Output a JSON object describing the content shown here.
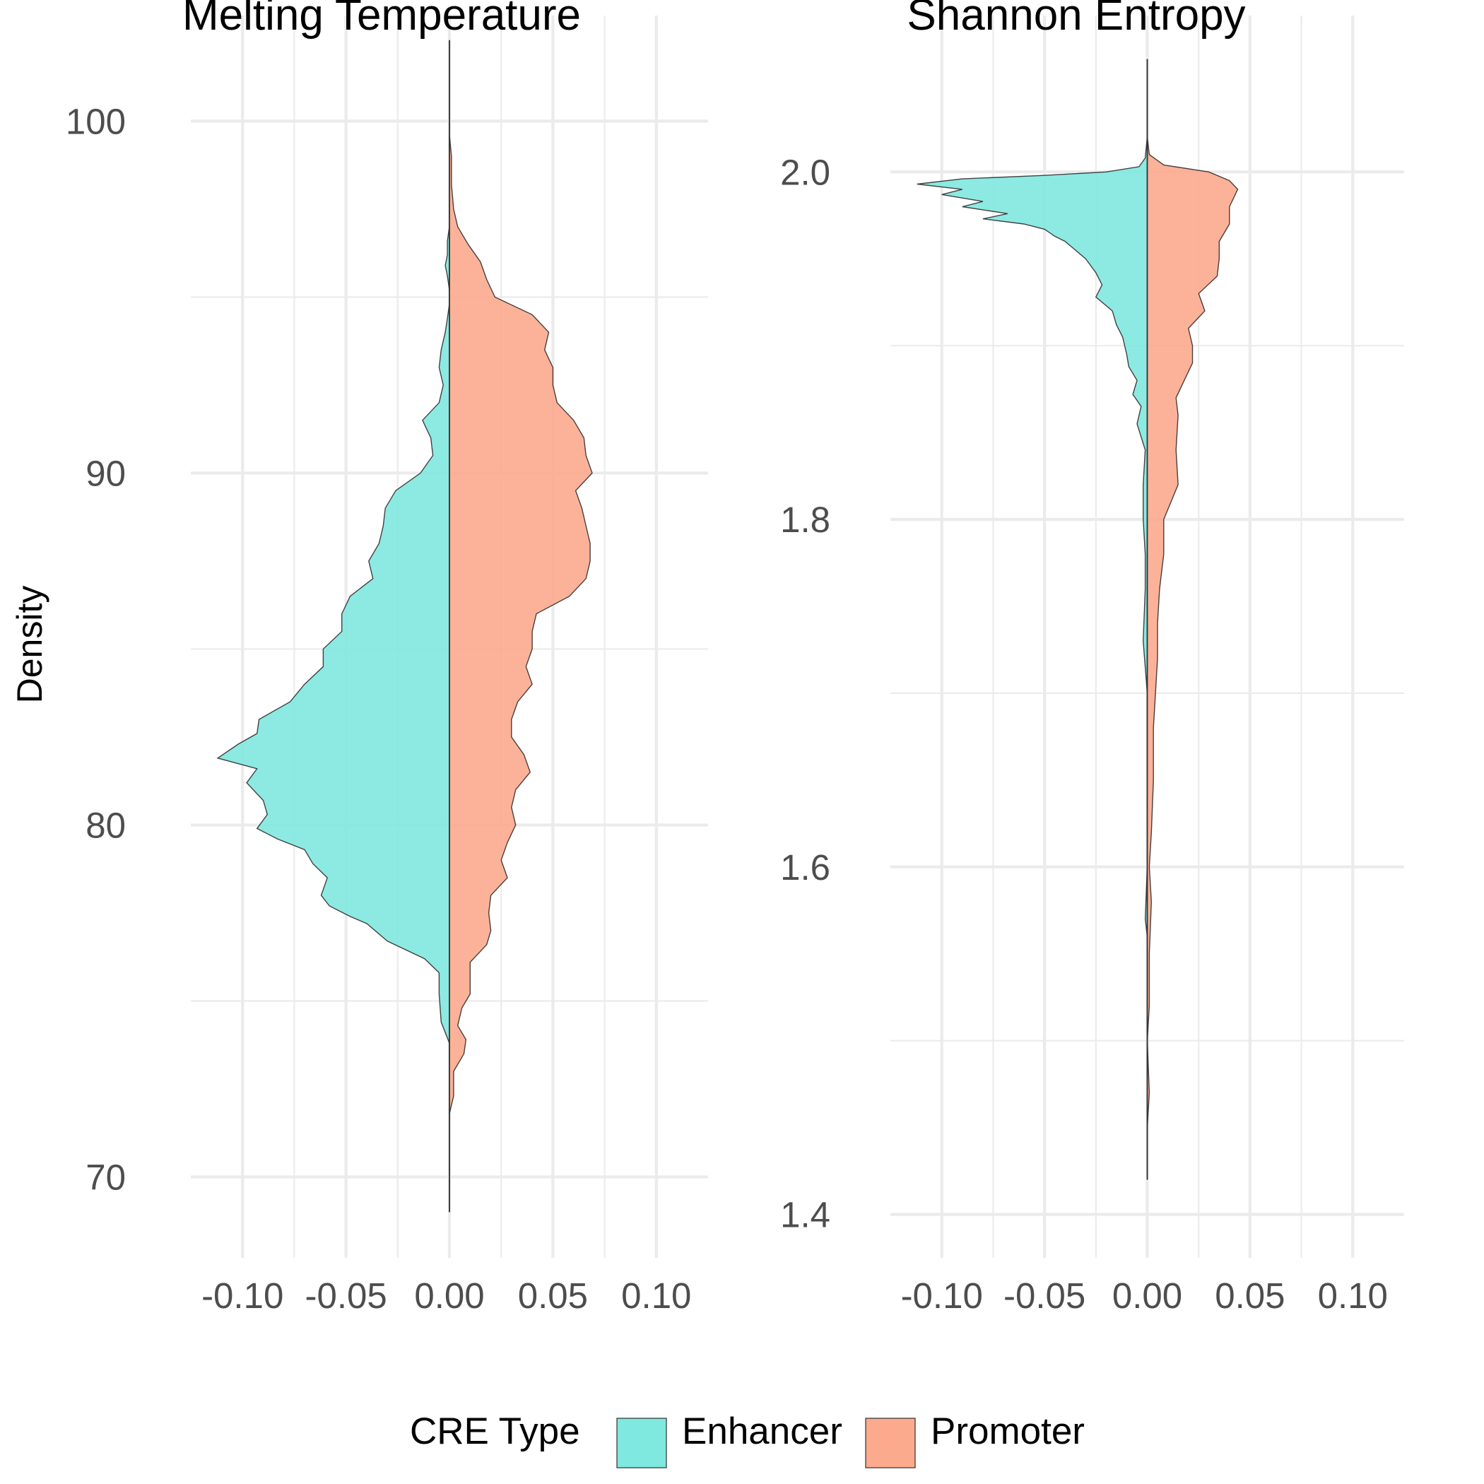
{
  "chart_data": [
    {
      "type": "violin",
      "title": "Melting Temperature",
      "ylabel": "Density",
      "xlim": [
        -0.125,
        0.125
      ],
      "ylim": [
        67.7,
        103.0
      ],
      "x_ticks": [
        -0.1,
        -0.05,
        0.0,
        0.05,
        0.1
      ],
      "x_tick_labels": [
        "-0.10",
        "-0.05",
        "0.00",
        "0.05",
        "0.10"
      ],
      "y_ticks": [
        70,
        80,
        90,
        100
      ],
      "y_tick_labels": [
        "70",
        "80",
        "90",
        "100"
      ],
      "grid": true,
      "series": [
        {
          "name": "Enhancer",
          "side": "left",
          "points": [
            [
              69.0,
              0.0
            ],
            [
              72.0,
              0.0
            ],
            [
              73.8,
              0.0
            ],
            [
              74.4,
              -0.004
            ],
            [
              75.2,
              -0.005
            ],
            [
              75.8,
              -0.005
            ],
            [
              76.2,
              -0.012
            ],
            [
              76.7,
              -0.03
            ],
            [
              77.2,
              -0.04
            ],
            [
              77.4,
              -0.048
            ],
            [
              77.7,
              -0.058
            ],
            [
              78.0,
              -0.062
            ],
            [
              78.5,
              -0.059
            ],
            [
              78.9,
              -0.066
            ],
            [
              79.3,
              -0.07
            ],
            [
              79.6,
              -0.083
            ],
            [
              79.9,
              -0.093
            ],
            [
              80.3,
              -0.088
            ],
            [
              80.7,
              -0.09
            ],
            [
              81.2,
              -0.098
            ],
            [
              81.6,
              -0.093
            ],
            [
              81.9,
              -0.112
            ],
            [
              82.3,
              -0.102
            ],
            [
              82.6,
              -0.093
            ],
            [
              83.0,
              -0.092
            ],
            [
              83.5,
              -0.077
            ],
            [
              84.0,
              -0.07
            ],
            [
              84.5,
              -0.061
            ],
            [
              85.0,
              -0.061
            ],
            [
              85.5,
              -0.052
            ],
            [
              86.0,
              -0.052
            ],
            [
              86.5,
              -0.048
            ],
            [
              87.0,
              -0.037
            ],
            [
              87.5,
              -0.039
            ],
            [
              88.0,
              -0.034
            ],
            [
              88.5,
              -0.032
            ],
            [
              89.0,
              -0.031
            ],
            [
              89.5,
              -0.026
            ],
            [
              90.0,
              -0.014
            ],
            [
              90.5,
              -0.008
            ],
            [
              91.0,
              -0.009
            ],
            [
              91.5,
              -0.013
            ],
            [
              92.0,
              -0.005
            ],
            [
              92.5,
              -0.003
            ],
            [
              93.0,
              -0.005
            ],
            [
              93.5,
              -0.004
            ],
            [
              94.0,
              -0.002
            ],
            [
              94.4,
              -0.001
            ],
            [
              94.8,
              0.0
            ],
            [
              95.2,
              0.0
            ],
            [
              95.6,
              -0.001
            ],
            [
              95.9,
              -0.002
            ],
            [
              96.2,
              -0.001
            ],
            [
              96.6,
              -0.001
            ],
            [
              97.0,
              0.0
            ],
            [
              100.0,
              0.0
            ],
            [
              102.3,
              0.0
            ]
          ]
        },
        {
          "name": "Promoter",
          "side": "right",
          "points": [
            [
              69.0,
              0.0
            ],
            [
              71.8,
              0.0
            ],
            [
              72.3,
              0.002
            ],
            [
              73.0,
              0.002
            ],
            [
              73.5,
              0.007
            ],
            [
              73.9,
              0.008
            ],
            [
              74.3,
              0.004
            ],
            [
              74.8,
              0.006
            ],
            [
              75.2,
              0.01
            ],
            [
              75.7,
              0.01
            ],
            [
              76.1,
              0.01
            ],
            [
              76.6,
              0.018
            ],
            [
              77.0,
              0.02
            ],
            [
              77.5,
              0.019
            ],
            [
              78.0,
              0.02
            ],
            [
              78.5,
              0.028
            ],
            [
              79.0,
              0.025
            ],
            [
              79.5,
              0.028
            ],
            [
              80.0,
              0.032
            ],
            [
              80.5,
              0.03
            ],
            [
              81.0,
              0.032
            ],
            [
              81.5,
              0.039
            ],
            [
              82.0,
              0.036
            ],
            [
              82.5,
              0.03
            ],
            [
              83.0,
              0.03
            ],
            [
              83.5,
              0.033
            ],
            [
              84.0,
              0.04
            ],
            [
              84.5,
              0.037
            ],
            [
              85.0,
              0.04
            ],
            [
              85.5,
              0.04
            ],
            [
              86.0,
              0.042
            ],
            [
              86.5,
              0.058
            ],
            [
              87.0,
              0.066
            ],
            [
              87.5,
              0.068
            ],
            [
              88.0,
              0.068
            ],
            [
              88.5,
              0.066
            ],
            [
              89.0,
              0.064
            ],
            [
              89.5,
              0.061
            ],
            [
              90.0,
              0.069
            ],
            [
              90.5,
              0.066
            ],
            [
              91.0,
              0.065
            ],
            [
              91.5,
              0.06
            ],
            [
              92.0,
              0.052
            ],
            [
              92.5,
              0.05
            ],
            [
              93.0,
              0.05
            ],
            [
              93.5,
              0.046
            ],
            [
              94.0,
              0.048
            ],
            [
              94.5,
              0.04
            ],
            [
              95.0,
              0.022
            ],
            [
              95.5,
              0.018
            ],
            [
              96.0,
              0.015
            ],
            [
              96.5,
              0.009
            ],
            [
              97.0,
              0.004
            ],
            [
              97.5,
              0.002
            ],
            [
              98.2,
              0.001
            ],
            [
              99.0,
              0.001
            ],
            [
              99.6,
              0.0
            ],
            [
              102.3,
              0.0
            ]
          ]
        }
      ]
    },
    {
      "type": "violin",
      "title": "Shannon Entropy",
      "xlim": [
        -0.125,
        0.125
      ],
      "ylim": [
        1.375,
        2.09
      ],
      "x_ticks": [
        -0.1,
        -0.05,
        0.0,
        0.05,
        0.1
      ],
      "x_tick_labels": [
        "-0.10",
        "-0.05",
        "0.00",
        "0.05",
        "0.10"
      ],
      "y_ticks": [
        1.4,
        1.6,
        1.8,
        2.0
      ],
      "y_tick_labels": [
        "1.4",
        "1.6",
        "1.8",
        "2.0"
      ],
      "grid": true,
      "series": [
        {
          "name": "Enhancer",
          "side": "left",
          "points": [
            [
              1.42,
              0.0
            ],
            [
              1.56,
              0.0
            ],
            [
              1.57,
              -0.001
            ],
            [
              1.6,
              0.0
            ],
            [
              1.7,
              0.0
            ],
            [
              1.73,
              -0.002
            ],
            [
              1.76,
              -0.001
            ],
            [
              1.78,
              -0.001
            ],
            [
              1.8,
              -0.002
            ],
            [
              1.82,
              -0.002
            ],
            [
              1.84,
              -0.001
            ],
            [
              1.855,
              -0.005
            ],
            [
              1.865,
              -0.003
            ],
            [
              1.872,
              -0.007
            ],
            [
              1.88,
              -0.005
            ],
            [
              1.888,
              -0.009
            ],
            [
              1.895,
              -0.01
            ],
            [
              1.905,
              -0.012
            ],
            [
              1.912,
              -0.015
            ],
            [
              1.92,
              -0.017
            ],
            [
              1.928,
              -0.025
            ],
            [
              1.935,
              -0.022
            ],
            [
              1.942,
              -0.025
            ],
            [
              1.95,
              -0.03
            ],
            [
              1.955,
              -0.035
            ],
            [
              1.96,
              -0.04
            ],
            [
              1.963,
              -0.045
            ],
            [
              1.967,
              -0.05
            ],
            [
              1.97,
              -0.06
            ],
            [
              1.973,
              -0.08
            ],
            [
              1.976,
              -0.068
            ],
            [
              1.98,
              -0.09
            ],
            [
              1.983,
              -0.08
            ],
            [
              1.987,
              -0.1
            ],
            [
              1.99,
              -0.09
            ],
            [
              1.993,
              -0.112
            ],
            [
              1.996,
              -0.09
            ],
            [
              1.998,
              -0.05
            ],
            [
              2.0,
              -0.02
            ],
            [
              2.003,
              -0.004
            ],
            [
              2.008,
              -0.001
            ],
            [
              2.02,
              0.0
            ],
            [
              2.065,
              0.0
            ]
          ]
        },
        {
          "name": "Promoter",
          "side": "right",
          "points": [
            [
              1.42,
              0.0
            ],
            [
              1.45,
              0.0
            ],
            [
              1.47,
              0.001
            ],
            [
              1.5,
              0.0
            ],
            [
              1.52,
              0.001
            ],
            [
              1.55,
              0.001
            ],
            [
              1.58,
              0.002
            ],
            [
              1.6,
              0.001
            ],
            [
              1.62,
              0.002
            ],
            [
              1.65,
              0.003
            ],
            [
              1.68,
              0.003
            ],
            [
              1.7,
              0.004
            ],
            [
              1.72,
              0.005
            ],
            [
              1.74,
              0.005
            ],
            [
              1.76,
              0.006
            ],
            [
              1.78,
              0.008
            ],
            [
              1.8,
              0.008
            ],
            [
              1.82,
              0.015
            ],
            [
              1.84,
              0.014
            ],
            [
              1.86,
              0.015
            ],
            [
              1.87,
              0.014
            ],
            [
              1.88,
              0.018
            ],
            [
              1.89,
              0.022
            ],
            [
              1.9,
              0.022
            ],
            [
              1.91,
              0.02
            ],
            [
              1.92,
              0.028
            ],
            [
              1.93,
              0.025
            ],
            [
              1.94,
              0.034
            ],
            [
              1.95,
              0.035
            ],
            [
              1.96,
              0.035
            ],
            [
              1.97,
              0.04
            ],
            [
              1.98,
              0.04
            ],
            [
              1.99,
              0.044
            ],
            [
              1.995,
              0.04
            ],
            [
              2.0,
              0.03
            ],
            [
              2.004,
              0.008
            ],
            [
              2.01,
              0.001
            ],
            [
              2.02,
              0.0
            ],
            [
              2.065,
              0.0
            ]
          ]
        }
      ]
    }
  ],
  "legend": {
    "title": "CRE Type",
    "items": [
      {
        "label": "Enhancer",
        "color": "#7fe8df"
      },
      {
        "label": "Promoter",
        "color": "#fcaa8e"
      }
    ],
    "position": "bottom"
  }
}
